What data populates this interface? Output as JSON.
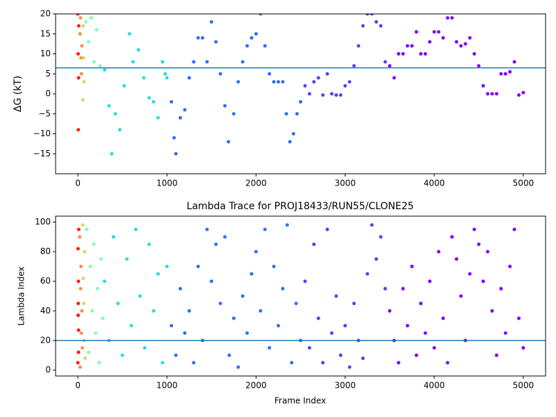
{
  "chart_data": [
    {
      "type": "scatter",
      "ylabel": "ΔG (kT)",
      "xlim": [
        -250,
        5250
      ],
      "ylim": [
        -20,
        20
      ],
      "xticks": [
        0,
        1000,
        2000,
        3000,
        4000,
        5000
      ],
      "yticks": [
        {
          "value": -15,
          "label": "−15"
        },
        {
          "value": -10,
          "label": "−10"
        },
        {
          "value": -5,
          "label": "−5"
        },
        0,
        5,
        10,
        15,
        20
      ],
      "hline": {
        "value": 6.5,
        "color": "#1f77b4"
      },
      "series": [
        {
          "color": "#ff1a0d",
          "x": [
            0,
            3,
            5,
            8,
            10
          ],
          "values": [
            20,
            10,
            -9,
            4,
            17
          ]
        },
        {
          "color": "#ff8c47",
          "x": [
            25,
            30,
            35,
            40,
            45
          ],
          "values": [
            15,
            19,
            9,
            5,
            12
          ]
        },
        {
          "color": "#d6d86e",
          "x": [
            55,
            60,
            65,
            70
          ],
          "values": [
            -1.5,
            17,
            9,
            3
          ]
        },
        {
          "color": "#80ffb4",
          "x": [
            90,
            120,
            150,
            180,
            210,
            250
          ],
          "values": [
            18,
            13,
            19,
            8,
            16,
            7
          ]
        },
        {
          "color": "#2adcdc",
          "x": [
            300,
            350,
            380,
            420,
            470,
            520,
            580,
            620,
            680,
            740,
            800,
            850,
            900,
            950,
            980,
            1000
          ],
          "values": [
            6,
            -3,
            -15,
            -5,
            -9,
            2,
            15,
            8,
            11,
            4,
            -1,
            -2,
            -6,
            8,
            5,
            4
          ]
        },
        {
          "color": "#2f6ff5",
          "x": [
            1050,
            1080,
            1100,
            1150,
            1200,
            1250,
            1300,
            1350,
            1400,
            1450,
            1500,
            1550,
            1600,
            1650,
            1690,
            1750,
            1800,
            1850,
            1900,
            1950,
            2000,
            2050,
            2100,
            2150,
            2200,
            2250,
            2300,
            2340,
            2380,
            2420,
            2460,
            2500
          ],
          "values": [
            -2,
            -11,
            -15,
            -6,
            -4,
            4,
            8,
            14,
            14,
            8,
            18,
            13,
            5,
            -3,
            -12,
            -5,
            3,
            8,
            12,
            14,
            15,
            20,
            12,
            5,
            3,
            3,
            3,
            -5,
            -12,
            -10,
            -5,
            -2
          ]
        },
        {
          "color": "#5a3cf8",
          "x": [
            2550,
            2600,
            2650,
            2700,
            2750,
            2800,
            2850,
            2900,
            2950,
            3000,
            3050,
            3100,
            3150,
            3200,
            3250,
            3300,
            3350,
            3400,
            3450
          ],
          "values": [
            2,
            0,
            3,
            4,
            -0.3,
            5,
            0,
            -0.3,
            -0.3,
            2,
            3,
            7,
            12,
            17,
            20,
            20,
            18,
            17,
            8
          ]
        },
        {
          "color": "#8000ff",
          "x": [
            3500,
            3550,
            3600,
            3650,
            3700,
            3750,
            3800,
            3850,
            3900,
            3950,
            4000,
            4050,
            4100,
            4150,
            4200,
            4250,
            4300,
            4350,
            4400,
            4450,
            4500,
            4550,
            4600,
            4650,
            4700,
            4750,
            4800,
            4850,
            4900,
            4950,
            5000
          ],
          "values": [
            7,
            4,
            10,
            10,
            12,
            12,
            15.5,
            10,
            10,
            13,
            15.5,
            15.5,
            14,
            19,
            19,
            13,
            12,
            12.5,
            14,
            10,
            7,
            2,
            0,
            0,
            0,
            5,
            5,
            5.5,
            8,
            -0.3,
            0.3
          ]
        }
      ]
    },
    {
      "type": "scatter",
      "title": "Lambda Trace for PROJ18433/RUN55/CLONE25",
      "xlabel": "Frame Index",
      "ylabel": "Lambda Index",
      "xlim": [
        -250,
        5250
      ],
      "ylim": [
        -4,
        104
      ],
      "xticks": [
        0,
        1000,
        2000,
        3000,
        4000,
        5000
      ],
      "yticks": [
        0,
        20,
        40,
        60,
        80,
        100
      ],
      "hline": {
        "value": 20,
        "color": "#1f77b4"
      },
      "series": [
        {
          "color": "#ff1a0d",
          "x": [
            0,
            2,
            4,
            6,
            8,
            10,
            3,
            7
          ],
          "values": [
            5,
            82,
            45,
            60,
            27,
            95,
            37,
            12
          ]
        },
        {
          "color": "#ff8c47",
          "x": [
            20,
            25,
            30,
            35,
            40,
            45,
            50
          ],
          "values": [
            90,
            2,
            55,
            70,
            25,
            40,
            15
          ]
        },
        {
          "color": "#d6d86e",
          "x": [
            55,
            60,
            65,
            70,
            75,
            80
          ],
          "values": [
            98,
            62,
            45,
            20,
            80,
            8
          ]
        },
        {
          "color": "#80ffb4",
          "x": [
            100,
            120,
            140,
            160,
            180,
            200,
            220,
            240,
            260,
            280
          ],
          "values": [
            95,
            12,
            70,
            40,
            85,
            25,
            55,
            5,
            75,
            35
          ]
        },
        {
          "color": "#2adcdc",
          "x": [
            300,
            350,
            400,
            450,
            500,
            550,
            600,
            650,
            700,
            750,
            800,
            850,
            900,
            950,
            1000
          ],
          "values": [
            60,
            20,
            90,
            45,
            10,
            75,
            30,
            95,
            50,
            15,
            85,
            40,
            65,
            5,
            70
          ]
        },
        {
          "color": "#2f6ff5",
          "x": [
            1050,
            1100,
            1150,
            1200,
            1250,
            1300,
            1350,
            1400,
            1450,
            1500,
            1550,
            1600,
            1650,
            1700,
            1750,
            1800,
            1850,
            1900,
            1950,
            2000,
            2050,
            2100,
            2150,
            2200,
            2250,
            2300,
            2350,
            2400,
            2450,
            2500
          ],
          "values": [
            30,
            10,
            55,
            25,
            40,
            5,
            70,
            20,
            95,
            60,
            85,
            45,
            90,
            10,
            35,
            2,
            50,
            25,
            65,
            80,
            40,
            95,
            15,
            70,
            30,
            55,
            98,
            5,
            45,
            20
          ]
        },
        {
          "color": "#5a3cf8",
          "x": [
            2550,
            2600,
            2650,
            2700,
            2750,
            2800,
            2850,
            2900,
            2950,
            3000,
            3050,
            3100,
            3150,
            3200,
            3250,
            3300,
            3350,
            3400,
            3450
          ],
          "values": [
            60,
            15,
            85,
            35,
            5,
            95,
            25,
            50,
            10,
            30,
            2,
            45,
            20,
            8,
            65,
            98,
            75,
            90,
            55
          ]
        },
        {
          "color": "#8000ff",
          "x": [
            3500,
            3550,
            3600,
            3650,
            3700,
            3750,
            3800,
            3850,
            3900,
            3950,
            4000,
            4050,
            4100,
            4150,
            4200,
            4250,
            4300,
            4350,
            4400,
            4450,
            4500,
            4550,
            4600,
            4650,
            4700,
            4750,
            4800,
            4850,
            4900,
            4950,
            5000
          ],
          "values": [
            40,
            20,
            5,
            55,
            30,
            70,
            10,
            45,
            25,
            60,
            15,
            80,
            35,
            5,
            90,
            75,
            50,
            20,
            65,
            95,
            85,
            60,
            80,
            40,
            10,
            55,
            25,
            70,
            95,
            35,
            15
          ]
        }
      ]
    }
  ]
}
